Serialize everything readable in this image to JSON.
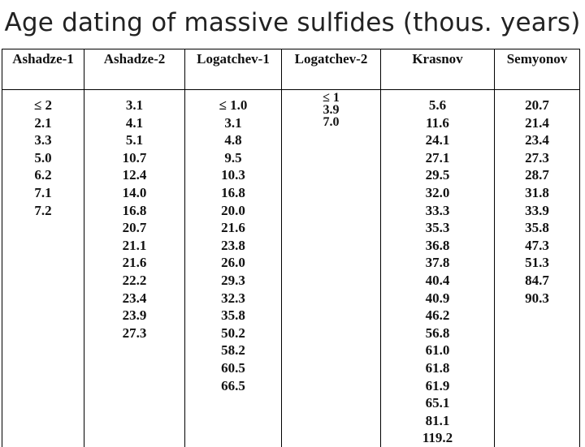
{
  "title": "Age dating of massive sulfides (thous. years)",
  "table": {
    "columns": [
      {
        "header": "Ashadze-1",
        "values": [
          "≤ 2",
          "2.1",
          "3.3",
          "5.0",
          "6.2",
          "7.1",
          "7.2"
        ]
      },
      {
        "header": "Ashadze-2",
        "values": [
          "3.1",
          "4.1",
          "5.1",
          "10.7",
          "12.4",
          "14.0",
          "16.8",
          "20.7",
          "21.1",
          "21.6",
          "22.2",
          "23.4",
          "23.9",
          "27.3"
        ]
      },
      {
        "header": "Logatchev-1",
        "values": [
          "≤ 1.0",
          "3.1",
          "4.8",
          "9.5",
          "10.3",
          "16.8",
          "20.0",
          "21.6",
          "23.8",
          "26.0",
          "29.3",
          "32.3",
          "35.8",
          "50.2",
          "58.2",
          "60.5",
          "66.5"
        ]
      },
      {
        "header": "Logatchev-2",
        "values": [
          "≤ 1",
          "3.9",
          "7.0"
        ]
      },
      {
        "header": "Krasnov",
        "values": [
          "5.6",
          "11.6",
          "24.1",
          "27.1",
          "29.5",
          "32.0",
          "33.3",
          "35.3",
          "36.8",
          "37.8",
          "40.4",
          "40.9",
          "46.2",
          "56.8",
          "61.0",
          "61.8",
          "61.9",
          "65.1",
          "81.1",
          "119.2"
        ]
      },
      {
        "header": "Semyonov",
        "values": [
          "20.7",
          "21.4",
          "23.4",
          "27.3",
          "28.7",
          "31.8",
          "33.9",
          "35.8",
          "47.3",
          "51.3",
          "84.7",
          "90.3"
        ]
      }
    ]
  }
}
